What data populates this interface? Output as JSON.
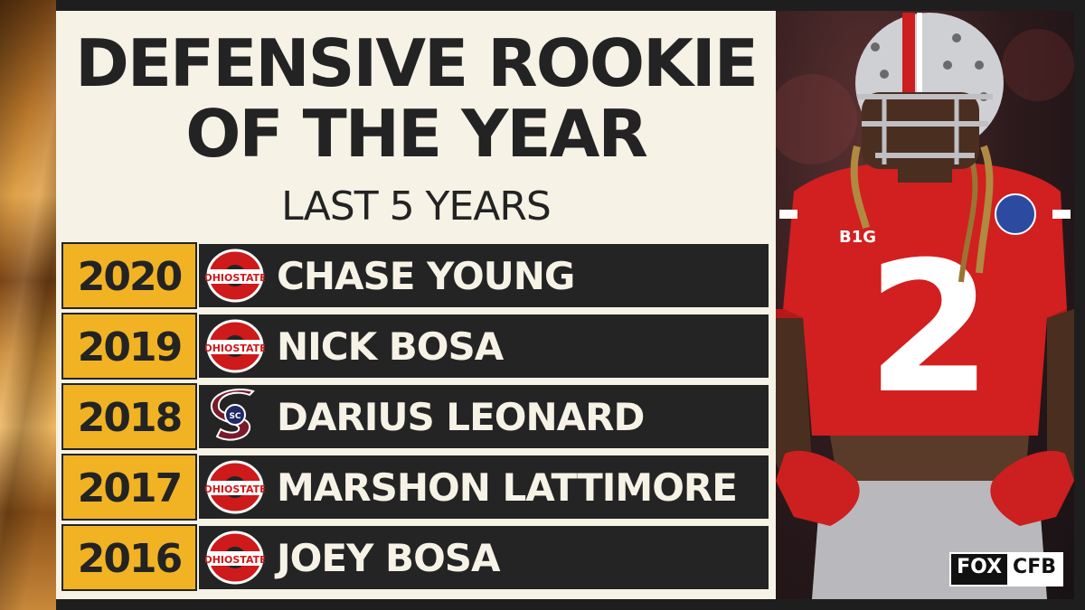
{
  "title_line1": "DEFENSIVE ROOKIE",
  "title_line2": "OF THE YEAR",
  "subtitle": "LAST 5 YEARS",
  "rows": [
    {
      "year": "2020",
      "name": "CHASE YOUNG",
      "school": "ohio-state"
    },
    {
      "year": "2019",
      "name": "NICK BOSA",
      "school": "ohio-state"
    },
    {
      "year": "2018",
      "name": "DARIUS LEONARD",
      "school": "south-carolina-state"
    },
    {
      "year": "2017",
      "name": "MARSHON LATTIMORE",
      "school": "ohio-state"
    },
    {
      "year": "2016",
      "name": "JOEY BOSA",
      "school": "ohio-state"
    }
  ],
  "jersey_number": "2",
  "brand": {
    "fox": "FOX",
    "cfb": "CFB"
  },
  "colors": {
    "gold": "#f1b323",
    "dark": "#242424",
    "cream": "#f6f2e6",
    "scarlet": "#ce1a1a"
  }
}
